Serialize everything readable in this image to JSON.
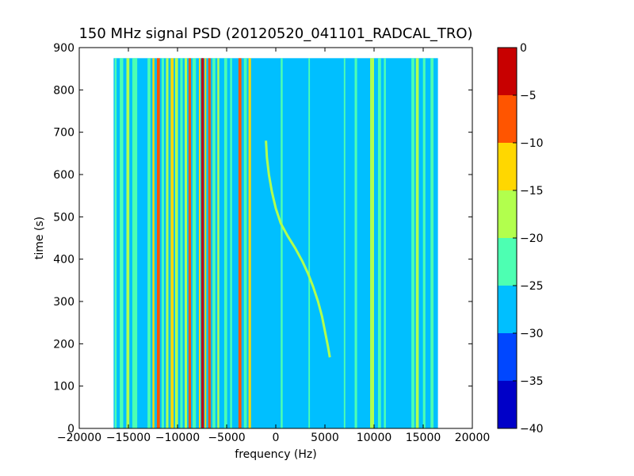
{
  "chart_data": {
    "type": "heatmap",
    "title": "150 MHz signal PSD (20120520_041101_RADCAL_TRO)",
    "xlabel": "frequency (Hz)",
    "ylabel": "time (s)",
    "xlim": [
      -20000,
      20000
    ],
    "ylim": [
      0,
      900
    ],
    "xticks": [
      -20000,
      -15000,
      -10000,
      -5000,
      0,
      5000,
      10000,
      15000,
      20000
    ],
    "xtick_labels": [
      "−20000",
      "−15000",
      "−10000",
      "−5000",
      "0",
      "5000",
      "10000",
      "15000",
      "20000"
    ],
    "yticks": [
      0,
      100,
      200,
      300,
      400,
      500,
      600,
      700,
      800,
      900
    ],
    "ytick_labels": [
      "0",
      "100",
      "200",
      "300",
      "400",
      "500",
      "600",
      "700",
      "800",
      "900"
    ],
    "data_extent": {
      "freq": [
        -16500,
        16500
      ],
      "time": [
        0,
        875
      ]
    },
    "background_level": -27.5,
    "colorbar": {
      "min": -40,
      "max": 0,
      "ticks": [
        0,
        -5,
        -10,
        -15,
        -20,
        -25,
        -30,
        -35,
        -40
      ],
      "tick_labels": [
        "0",
        "−5",
        "−10",
        "−15",
        "−20",
        "−25",
        "−30",
        "−35",
        "−40"
      ],
      "levels": [
        {
          "from": -40,
          "to": -35,
          "color": "#0000c8"
        },
        {
          "from": -35,
          "to": -30,
          "color": "#0047ff"
        },
        {
          "from": -30,
          "to": -25,
          "color": "#00bfff"
        },
        {
          "from": -25,
          "to": -20,
          "color": "#4dffb2"
        },
        {
          "from": -20,
          "to": -15,
          "color": "#b2ff4d"
        },
        {
          "from": -15,
          "to": -10,
          "color": "#ffd700"
        },
        {
          "from": -10,
          "to": -5,
          "color": "#ff5500"
        },
        {
          "from": -5,
          "to": 0,
          "color": "#c80000"
        }
      ]
    },
    "vertical_features": [
      {
        "freq": -16300,
        "width": 200,
        "level": -22.5
      },
      {
        "freq": -15700,
        "width": 350,
        "level": -22.5
      },
      {
        "freq": -15050,
        "width": 300,
        "level": -17.5
      },
      {
        "freq": -14350,
        "width": 500,
        "level": -22.5
      },
      {
        "freq": -12900,
        "width": 300,
        "level": -22.5
      },
      {
        "freq": -12450,
        "width": 200,
        "level": -12.5
      },
      {
        "freq": -11950,
        "width": 300,
        "level": -7.5
      },
      {
        "freq": -11500,
        "width": 250,
        "level": -22.5
      },
      {
        "freq": -11050,
        "width": 250,
        "level": -17.5
      },
      {
        "freq": -10550,
        "width": 300,
        "level": -12.5
      },
      {
        "freq": -10100,
        "width": 300,
        "level": -17.5
      },
      {
        "freq": -9600,
        "width": 250,
        "level": -22.5
      },
      {
        "freq": -9150,
        "width": 250,
        "level": -17.5
      },
      {
        "freq": -8750,
        "width": 250,
        "level": -7.5
      },
      {
        "freq": -8300,
        "width": 350,
        "level": -22.5
      },
      {
        "freq": -7750,
        "width": 150,
        "level": -12.5
      },
      {
        "freq": -7450,
        "width": 250,
        "level": -2.5
      },
      {
        "freq": -7150,
        "width": 150,
        "level": -12.5
      },
      {
        "freq": -6750,
        "width": 250,
        "level": -7.5
      },
      {
        "freq": -6300,
        "width": 300,
        "level": -22.5
      },
      {
        "freq": -5850,
        "width": 200,
        "level": -17.5
      },
      {
        "freq": -5100,
        "width": 300,
        "level": -22.5
      },
      {
        "freq": -4550,
        "width": 200,
        "level": -22.5
      },
      {
        "freq": -3650,
        "width": 300,
        "level": -7.5
      },
      {
        "freq": -3100,
        "width": 300,
        "level": -22.5
      },
      {
        "freq": -2650,
        "width": 250,
        "level": -12.5
      },
      {
        "freq": 600,
        "width": 200,
        "level": -22.5
      },
      {
        "freq": 3400,
        "width": 150,
        "level": -22.5
      },
      {
        "freq": 7000,
        "width": 150,
        "level": -22.5
      },
      {
        "freq": 8150,
        "width": 250,
        "level": -22.5
      },
      {
        "freq": 9800,
        "width": 400,
        "level": -17.5
      },
      {
        "freq": 10550,
        "width": 300,
        "level": -22.5
      },
      {
        "freq": 11100,
        "width": 200,
        "level": -22.5
      },
      {
        "freq": 13950,
        "width": 300,
        "level": -22.5
      },
      {
        "freq": 14400,
        "width": 300,
        "level": -17.5
      },
      {
        "freq": 15100,
        "width": 250,
        "level": -22.5
      },
      {
        "freq": 15900,
        "width": 300,
        "level": -22.5
      }
    ],
    "drifting_signal": {
      "level": -17.5,
      "points": [
        [
          -1000,
          680
        ],
        [
          -900,
          640
        ],
        [
          -700,
          600
        ],
        [
          -400,
          560
        ],
        [
          0,
          520
        ],
        [
          500,
          485
        ],
        [
          1200,
          455
        ],
        [
          2000,
          425
        ],
        [
          2700,
          395
        ],
        [
          3300,
          365
        ],
        [
          3800,
          335
        ],
        [
          4300,
          300
        ],
        [
          4700,
          265
        ],
        [
          5000,
          230
        ],
        [
          5300,
          195
        ],
        [
          5500,
          168
        ]
      ]
    }
  }
}
